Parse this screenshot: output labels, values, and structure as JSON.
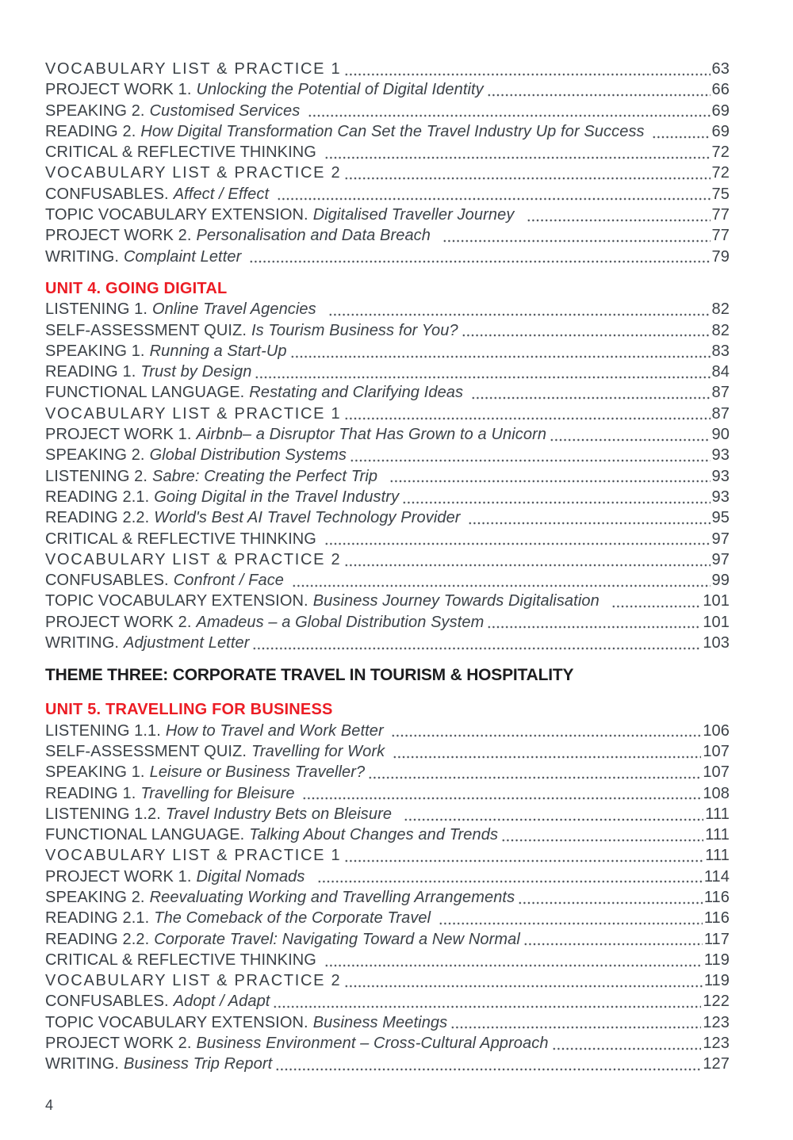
{
  "colors": {
    "text": "#3b4147",
    "accent_red": "#ec1c24",
    "heading_black": "#1c1d1f"
  },
  "footer": {
    "page_number": "4"
  },
  "toc": {
    "sections": [
      {
        "type": "entries",
        "items": [
          {
            "label": "VOCABULARY LIST & PRACTICE 1",
            "title": "",
            "page": "63",
            "tracked": true
          },
          {
            "label": "PROJECT WORK 1.",
            "title": "Unlocking the Potential of Digital Identity",
            "page": "66"
          },
          {
            "label": "SPEAKING 2.",
            "title": "Customised Services ",
            "page": "69"
          },
          {
            "label": "READING 2.",
            "title": "How Digital Transformation Can Set the Travel Industry Up for Success ",
            "page": "69"
          },
          {
            "label": "CRITICAL & REFLECTIVE THINKING ",
            "title": "",
            "page": "72"
          },
          {
            "label": "VOCABULARY LIST & PRACTICE 2",
            "title": "",
            "page": "72",
            "tracked": true
          },
          {
            "label": "CONFUSABLES.",
            "title": "Affect / Effect ",
            "page": "75"
          },
          {
            "label": "TOPIC VOCABULARY EXTENSION.",
            "title": "Digitalised Traveller Journey  ",
            "page": "77"
          },
          {
            "label": "PROJECT WORK 2.",
            "title": "Personalisation and Data Breach  ",
            "page": "77"
          },
          {
            "label": "WRITING.",
            "title": "Complaint Letter ",
            "page": "79"
          }
        ]
      },
      {
        "type": "unit",
        "text": "UNIT 4. GOING DIGITAL"
      },
      {
        "type": "entries",
        "items": [
          {
            "label": "LISTENING 1.",
            "title": "Online Travel Agencies  ",
            "page": "82"
          },
          {
            "label": "SELF-ASSESSMENT QUIZ.",
            "title": "Is Tourism Business for You?",
            "page": "82"
          },
          {
            "label": "SPEAKING 1.",
            "title": "Running a Start-Up",
            "page": "83"
          },
          {
            "label": "READING 1.",
            "title": "Trust by Design",
            "page": "84"
          },
          {
            "label": "FUNCTIONAL LANGUAGE.",
            "title": "Restating and Clarifying Ideas ",
            "page": "87"
          },
          {
            "label": "VOCABULARY LIST & PRACTICE 1",
            "title": "",
            "page": "87",
            "tracked": true
          },
          {
            "label": "PROJECT WORK 1.",
            "title": "Airbnb– a Disruptor That Has Grown to a Unicorn",
            "page": "90"
          },
          {
            "label": "SPEAKING 2.",
            "title": "Global Distribution Systems",
            "page": "93"
          },
          {
            "label": "LISTENING 2.",
            "title": "Sabre: Creating the Perfect Trip  ",
            "page": "93"
          },
          {
            "label": "READING 2.1.",
            "title": "Going Digital in the Travel Industry",
            "page": "93"
          },
          {
            "label": "READING 2.2.",
            "title": "World's Best AI Travel Technology Provider ",
            "page": "95"
          },
          {
            "label": "CRITICAL & REFLECTIVE THINKING ",
            "title": "",
            "page": "97"
          },
          {
            "label": "VOCABULARY LIST & PRACTICE 2",
            "title": "",
            "page": "97",
            "tracked": true
          },
          {
            "label": "CONFUSABLES.",
            "title": "Confront / Face ",
            "page": "99"
          },
          {
            "label": "TOPIC VOCABULARY EXTENSION.",
            "title": "Business Journey Towards Digitalisation  ",
            "page": "101"
          },
          {
            "label": "PROJECT WORK 2.",
            "title": "Amadeus – a Global Distribution System",
            "page": "101"
          },
          {
            "label": "WRITING.",
            "title": "Adjustment Letter",
            "page": "103"
          }
        ]
      },
      {
        "type": "theme",
        "text": "THEME THREE: CORPORATE TRAVEL IN TOURISM & HOSPITALITY"
      },
      {
        "type": "unit",
        "text": "UNIT 5. TRAVELLING FOR BUSINESS"
      },
      {
        "type": "entries",
        "items": [
          {
            "label": "LISTENING 1.1.",
            "title": "How to Travel and Work Better ",
            "page": "106"
          },
          {
            "label": "SELF-ASSESSMENT QUIZ.",
            "title": "Travelling for Work ",
            "page": "107"
          },
          {
            "label": "SPEAKING 1.",
            "title": "Leisure or Business Traveller?",
            "page": "107"
          },
          {
            "label": "READING 1.",
            "title": "Travelling for Bleisure ",
            "page": "108"
          },
          {
            "label": "LISTENING 1.2.",
            "title": "Travel Industry Bets on Bleisure  ",
            "page": "111"
          },
          {
            "label": "FUNCTIONAL LANGUAGE.",
            "title": "Talking About Changes and Trends",
            "page": "111"
          },
          {
            "label": "VOCABULARY LIST & PRACTICE 1",
            "title": "",
            "page": "111",
            "tracked": true
          },
          {
            "label": "PROJECT WORK 1.",
            "title": "Digital Nomads  ",
            "page": "114"
          },
          {
            "label": "SPEAKING 2.",
            "title": "Reevaluating Working and Travelling Arrangements",
            "page": "116"
          },
          {
            "label": "READING 2.1.",
            "title": "The Comeback of the Corporate Travel ",
            "page": "116"
          },
          {
            "label": "READING 2.2.",
            "title": "Corporate Travel: Navigating Toward a New Normal",
            "page": "117"
          },
          {
            "label": "CRITICAL & REFLECTIVE THINKING ",
            "title": "",
            "page": "119"
          },
          {
            "label": "VOCABULARY LIST & PRACTICE 2",
            "title": "",
            "page": "119",
            "tracked": true
          },
          {
            "label": "CONFUSABLES.",
            "title": "Adopt / Adapt",
            "page": "122"
          },
          {
            "label": "TOPIC VOCABULARY EXTENSION.",
            "title": "Business Meetings",
            "page": "123"
          },
          {
            "label": "PROJECT WORK 2.",
            "title": "Business Environment – Cross-Cultural Approach",
            "page": "123"
          },
          {
            "label": "WRITING.",
            "title": "Business Trip Report",
            "page": "127"
          }
        ]
      }
    ]
  }
}
